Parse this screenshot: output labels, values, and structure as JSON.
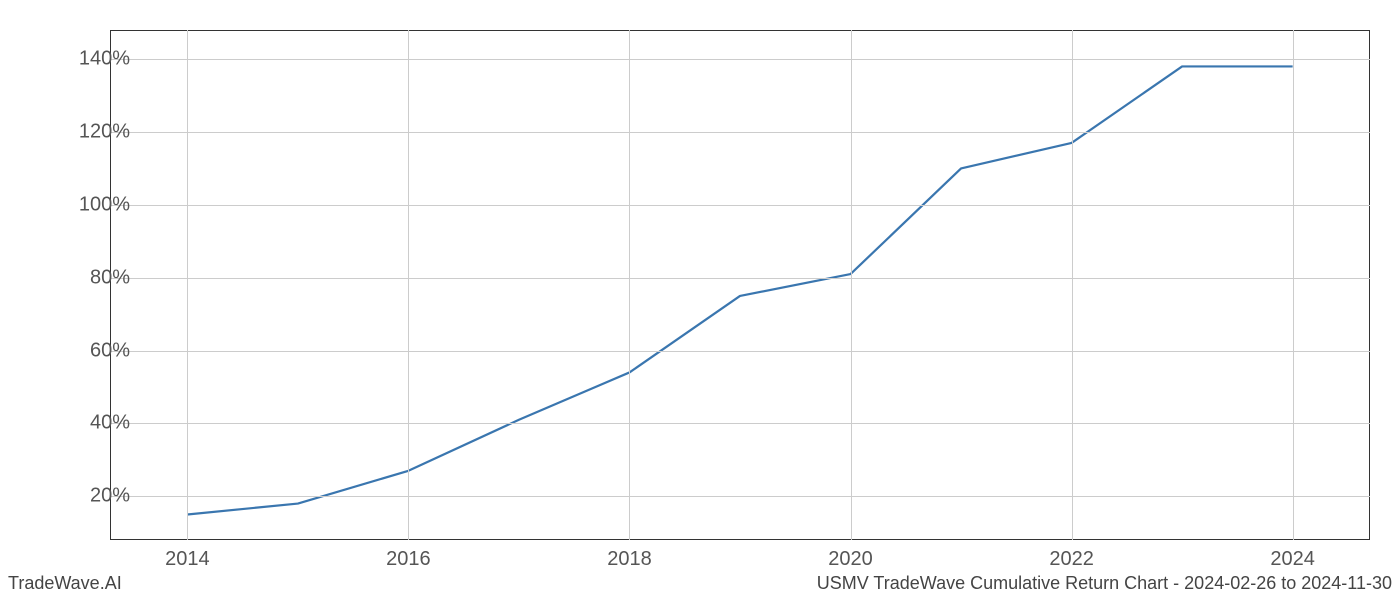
{
  "chart": {
    "type": "line",
    "background_color": "#ffffff",
    "grid_color": "#cccccc",
    "border_color": "#333333",
    "line_color": "#3a76af",
    "line_width": 2.2,
    "tick_label_color": "#555555",
    "tick_label_fontsize": 20,
    "footer_color": "#444444",
    "footer_fontsize": 18,
    "x": {
      "min": 2013.3,
      "max": 2024.7,
      "ticks": [
        2014,
        2016,
        2018,
        2020,
        2022,
        2024
      ],
      "tick_labels": [
        "2014",
        "2016",
        "2018",
        "2020",
        "2022",
        "2024"
      ]
    },
    "y": {
      "min": 8,
      "max": 148,
      "ticks": [
        20,
        40,
        60,
        80,
        100,
        120,
        140
      ],
      "tick_labels": [
        "20%",
        "40%",
        "60%",
        "80%",
        "100%",
        "120%",
        "140%"
      ]
    },
    "series": [
      {
        "name": "cumulative-return",
        "x": [
          2014,
          2015,
          2016,
          2017,
          2018,
          2019,
          2020,
          2021,
          2022,
          2023,
          2024
        ],
        "y": [
          15,
          18,
          27,
          41,
          54,
          75,
          81,
          110,
          117,
          138,
          138
        ]
      }
    ]
  },
  "footer": {
    "left": "TradeWave.AI",
    "right": "USMV TradeWave Cumulative Return Chart - 2024-02-26 to 2024-11-30"
  }
}
